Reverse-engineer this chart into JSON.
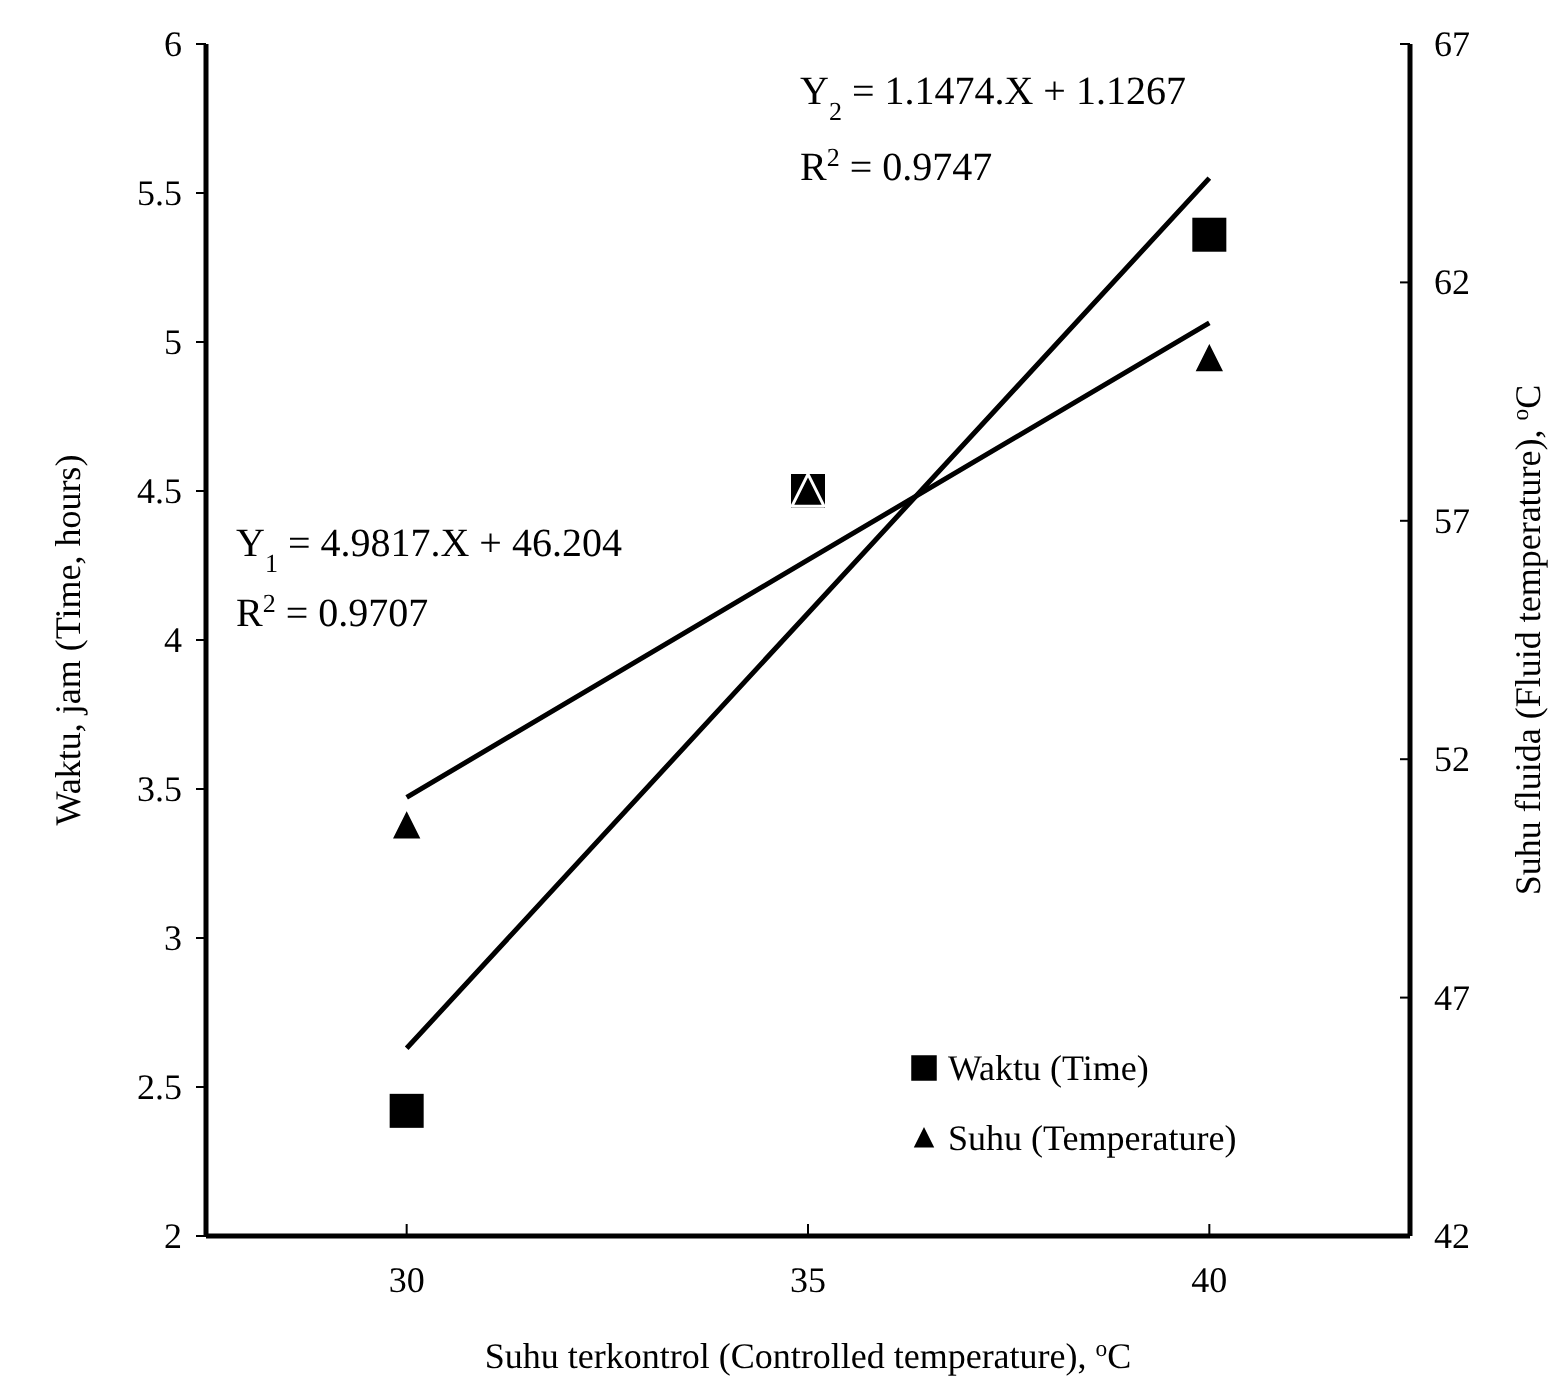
{
  "chart_data": {
    "type": "scatter",
    "xlabel": "Suhu terkontrol (Controlled temperature), $^{o}$C",
    "ylabel": "Waktu, jam (Time, hours)",
    "y2label": "Suhu fluida  (Fluid temperature), $^{o}$C",
    "x": [
      30,
      35,
      40
    ],
    "xlim": [
      27.5,
      42.5
    ],
    "xticks": [
      30,
      35,
      40
    ],
    "ylim": [
      2,
      6
    ],
    "yticks": [
      2,
      2.5,
      3,
      3.5,
      4,
      4.5,
      5,
      5.5,
      6
    ],
    "y2lim": [
      42,
      67
    ],
    "y2ticks": [
      42,
      47,
      52,
      57,
      62,
      67
    ],
    "series": [
      {
        "name": "Waktu (Time)",
        "color": "#000000",
        "marker": "square",
        "values": [
          2.42,
          4.5,
          5.36
        ]
      },
      {
        "name": "Suhu (Temperature)",
        "color": "#000000",
        "marker": "triangle",
        "axis": "y2",
        "values": [
          50.6,
          57.6,
          60.4
        ]
      },
      {
        "type": "line",
        "color": "#000000",
        "marker": "none",
        "values": [
          2.63,
          4.09,
          5.55
        ]
      },
      {
        "type": "line",
        "color": "#000000",
        "marker": "none",
        "axis": "y2",
        "values": [
          51.2,
          56.18,
          61.15
        ]
      }
    ],
    "annotations": [
      "Y$_{1}$ = 4.9817.X + 46.204",
      "R$^{2}$ = 0.9707",
      "Y$_{2}$ = 1.1474.X + 1.1267",
      "R$^{2}$ = 0.9747"
    ],
    "grid": false,
    "legend": "bottom right"
  }
}
